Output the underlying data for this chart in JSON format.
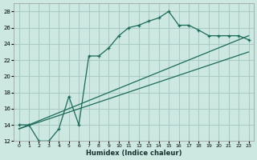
{
  "xlabel": "Humidex (Indice chaleur)",
  "background_color": "#cce8e0",
  "grid_color": "#aaccc4",
  "line_color": "#1a6a5a",
  "xlim": [
    -0.5,
    23.5
  ],
  "ylim": [
    12,
    29
  ],
  "yticks": [
    12,
    14,
    16,
    18,
    20,
    22,
    24,
    26,
    28
  ],
  "xticks": [
    0,
    1,
    2,
    3,
    4,
    5,
    6,
    7,
    8,
    9,
    10,
    11,
    12,
    13,
    14,
    15,
    16,
    17,
    18,
    19,
    20,
    21,
    22,
    23
  ],
  "line1_x": [
    0,
    1,
    2,
    3,
    4,
    5,
    6,
    7,
    8,
    9,
    10,
    11,
    12,
    13,
    14,
    15,
    16,
    17,
    18,
    19,
    20,
    21,
    22,
    23
  ],
  "line1_y": [
    14.0,
    14.0,
    12.0,
    12.0,
    13.5,
    17.5,
    14.0,
    22.5,
    22.5,
    23.5,
    25.0,
    26.0,
    26.3,
    26.8,
    27.2,
    28.0,
    26.3,
    26.3,
    25.7,
    25.0,
    25.0,
    25.0,
    25.0,
    24.5
  ],
  "line2_x": [
    0,
    23
  ],
  "line2_y": [
    13.5,
    25.0
  ],
  "line3_x": [
    0,
    23
  ],
  "line3_y": [
    13.5,
    23.0
  ]
}
